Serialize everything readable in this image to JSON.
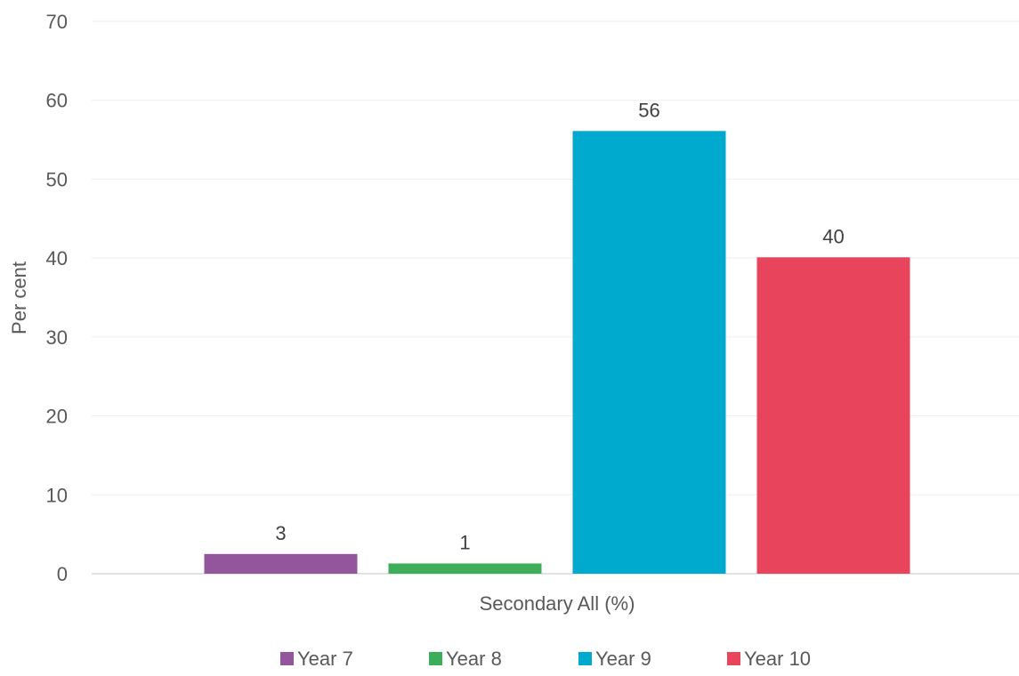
{
  "chart_data": {
    "type": "bar",
    "categories": [
      "Secondary All (%)"
    ],
    "series": [
      {
        "name": "Year 7",
        "values": [
          2.5
        ],
        "label": "3",
        "color": "#93559B"
      },
      {
        "name": "Year 8",
        "values": [
          1.3
        ],
        "label": "1",
        "color": "#3CAE5A"
      },
      {
        "name": "Year 9",
        "values": [
          56.1
        ],
        "label": "56",
        "color": "#00A9CE"
      },
      {
        "name": "Year 10",
        "values": [
          40.1
        ],
        "label": "40",
        "color": "#E8445C"
      }
    ],
    "yticks": [
      "0",
      "10",
      "20",
      "30",
      "40",
      "50",
      "60",
      "70"
    ],
    "ylabel": "Per cent",
    "xlabel": "",
    "ylim": [
      0,
      70
    ],
    "grid": true,
    "legend": "bottom",
    "gridColor": "#EDEDED",
    "axisColor": "#D9D9D9"
  }
}
